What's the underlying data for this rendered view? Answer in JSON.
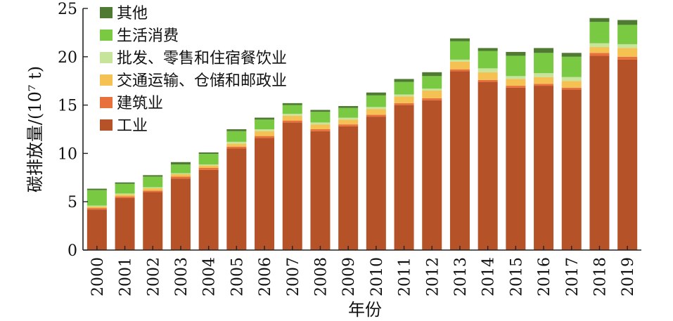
{
  "chart_data": {
    "type": "bar",
    "stacked": true,
    "xlabel": "年份",
    "ylabel": "碳排放量/(10⁷ t)",
    "ylim": [
      0,
      25
    ],
    "yticks": [
      0,
      5,
      10,
      15,
      20,
      25
    ],
    "legend_position": "top-left",
    "categories": [
      "2000",
      "2001",
      "2002",
      "2003",
      "2004",
      "2005",
      "2006",
      "2007",
      "2008",
      "2009",
      "2010",
      "2011",
      "2012",
      "2013",
      "2014",
      "2015",
      "2016",
      "2017",
      "2018",
      "2019"
    ],
    "series": [
      {
        "name": "工业",
        "color": "#b55228",
        "values": [
          4.2,
          5.4,
          6.0,
          7.4,
          8.3,
          10.5,
          11.6,
          13.2,
          12.3,
          12.8,
          13.8,
          15.0,
          15.5,
          18.5,
          17.4,
          16.8,
          17.0,
          16.6,
          20.1,
          19.7
        ]
      },
      {
        "name": "建筑业",
        "color": "#e8703a",
        "values": [
          0.15,
          0.15,
          0.15,
          0.2,
          0.2,
          0.2,
          0.2,
          0.2,
          0.2,
          0.2,
          0.2,
          0.2,
          0.2,
          0.2,
          0.2,
          0.2,
          0.2,
          0.2,
          0.3,
          0.3
        ]
      },
      {
        "name": "交通运输、仓储和邮政业",
        "color": "#f4c152",
        "values": [
          0.15,
          0.2,
          0.25,
          0.25,
          0.25,
          0.3,
          0.5,
          0.5,
          0.5,
          0.5,
          0.6,
          0.7,
          0.8,
          0.8,
          0.8,
          0.7,
          0.7,
          0.7,
          0.6,
          0.9
        ]
      },
      {
        "name": "批发、零售和住宿餐饮业",
        "color": "#c6e49a",
        "values": [
          0.1,
          0.1,
          0.1,
          0.1,
          0.1,
          0.2,
          0.2,
          0.2,
          0.2,
          0.2,
          0.2,
          0.2,
          0.2,
          0.2,
          0.4,
          0.3,
          0.4,
          0.4,
          0.4,
          0.4
        ]
      },
      {
        "name": "生活消费",
        "color": "#7ac943",
        "values": [
          1.6,
          1.0,
          1.1,
          0.9,
          1.1,
          1.1,
          1.0,
          0.9,
          1.1,
          1.0,
          1.2,
          1.3,
          1.3,
          1.9,
          1.8,
          2.1,
          2.1,
          2.1,
          2.2,
          2.0
        ]
      },
      {
        "name": "其他",
        "color": "#4f7a32",
        "values": [
          0.15,
          0.15,
          0.15,
          0.25,
          0.15,
          0.2,
          0.2,
          0.2,
          0.2,
          0.2,
          0.3,
          0.3,
          0.4,
          0.3,
          0.3,
          0.4,
          0.5,
          0.4,
          0.4,
          0.5
        ]
      }
    ]
  }
}
